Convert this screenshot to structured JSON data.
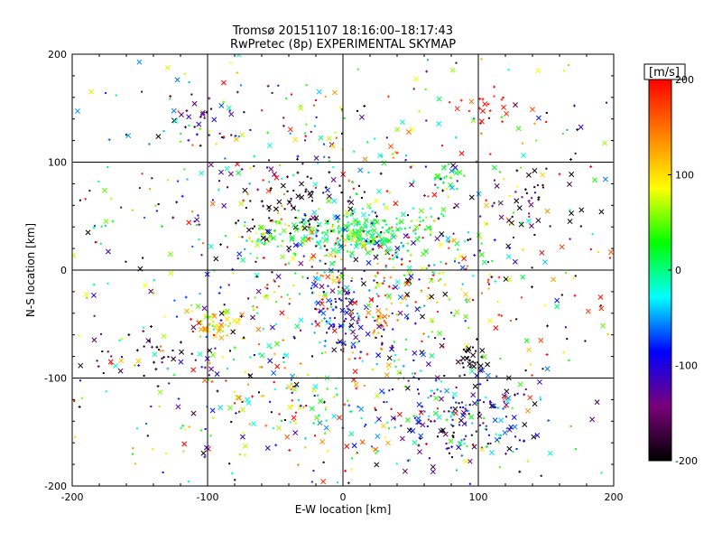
{
  "header": {
    "title_line1": "Tromsø 20151107 18:16:00–18:17:43",
    "title_line2": "RwPretec (8p) EXPERIMENTAL SKYMAP"
  },
  "colorbar": {
    "unit_label": "[m/s]",
    "ticks": [
      "200",
      "100",
      "0",
      "-100",
      "-200"
    ],
    "range": [
      -200,
      200
    ],
    "stops": [
      "#000000",
      "#7a007a",
      "#0000ff",
      "#00ffff",
      "#00ff00",
      "#ffff00",
      "#ff7f00",
      "#ff0000"
    ]
  },
  "chart_data": {
    "type": "scatter",
    "title": "Tromsø 20151107 18:16:00–18:17:43",
    "subtitle": "RwPretec (8p) EXPERIMENTAL SKYMAP",
    "xlabel": "E-W location [km]",
    "ylabel": "N-S location [km]",
    "xlim": [
      -200,
      200
    ],
    "ylim": [
      -200,
      200
    ],
    "xticks": [
      "-200",
      "-100",
      "0",
      "100",
      "200"
    ],
    "yticks": [
      "-200",
      "-100",
      "0",
      "100",
      "200"
    ],
    "grid": true,
    "color_scale": "velocity [m/s], -200 to 200",
    "clusters": [
      {
        "x": 10,
        "y": 35,
        "sx": 25,
        "sy": 10,
        "n": 220,
        "v": 10,
        "vs": 30
      },
      {
        "x": -35,
        "y": 60,
        "sx": 22,
        "sy": 18,
        "n": 60,
        "v": -200,
        "vs": 10
      },
      {
        "x": 95,
        "y": -80,
        "sx": 5,
        "sy": 8,
        "n": 25,
        "v": -200,
        "vs": 5
      },
      {
        "x": 90,
        "y": -140,
        "sx": 30,
        "sy": 25,
        "n": 190,
        "v": -110,
        "vs": 70
      },
      {
        "x": 0,
        "y": -40,
        "sx": 12,
        "sy": 22,
        "n": 90,
        "v": -100,
        "vs": 40
      },
      {
        "x": 30,
        "y": -45,
        "sx": 6,
        "sy": 8,
        "n": 25,
        "v": 140,
        "vs": 20
      },
      {
        "x": -95,
        "y": -50,
        "sx": 12,
        "sy": 8,
        "n": 45,
        "v": 100,
        "vs": 40
      },
      {
        "x": -55,
        "y": 30,
        "sx": 10,
        "sy": 8,
        "n": 35,
        "v": 40,
        "vs": 30
      },
      {
        "x": 75,
        "y": 90,
        "sx": 6,
        "sy": 6,
        "n": 18,
        "v": 30,
        "vs": 10
      },
      {
        "x": -150,
        "y": -75,
        "sx": 30,
        "sy": 12,
        "n": 40,
        "v": -180,
        "vs": 40
      },
      {
        "x": 100,
        "y": 150,
        "sx": 10,
        "sy": 8,
        "n": 18,
        "v": 190,
        "vs": 10
      },
      {
        "x": -100,
        "y": 140,
        "sx": 20,
        "sy": 15,
        "n": 30,
        "v": -170,
        "vs": 50
      },
      {
        "x": 125,
        "y": 60,
        "sx": 25,
        "sy": 25,
        "n": 45,
        "v": -170,
        "vs": 40
      },
      {
        "x": 20,
        "y": 0,
        "sx": 40,
        "sy": 20,
        "n": 130,
        "v": 60,
        "vs": 120
      },
      {
        "x": -40,
        "y": -120,
        "sx": 40,
        "sy": 25,
        "n": 110,
        "v": 40,
        "vs": 120
      },
      {
        "x": 0,
        "y": 0,
        "sx": 110,
        "sy": 110,
        "n": 1100,
        "v": 0,
        "vs": 130
      }
    ]
  }
}
